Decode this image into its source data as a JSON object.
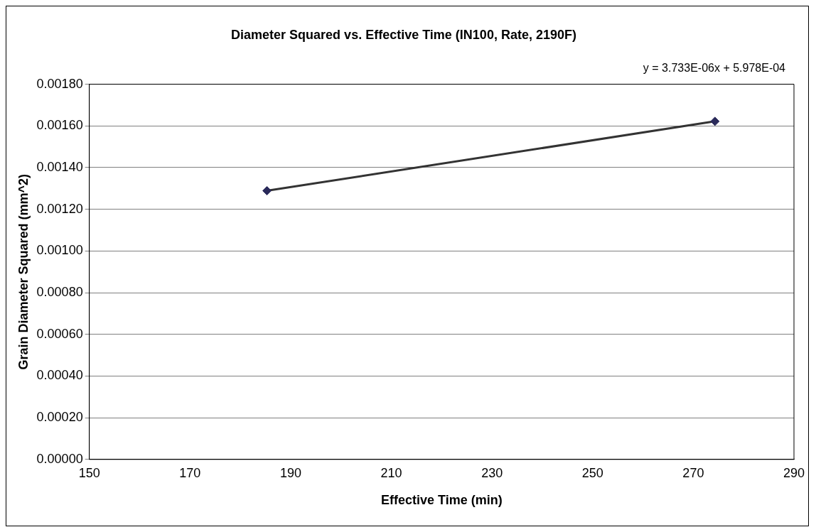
{
  "chart_data": {
    "type": "scatter",
    "title": "Diameter Squared vs. Effective Time (IN100, Rate, 2190F)",
    "xlabel": "Effective Time (min)",
    "ylabel": "Grain Diameter Squared (mm^2)",
    "x": [
      185.3,
      274.3
    ],
    "series": [
      {
        "color": "#2a2a5a",
        "values": [
          0.001289,
          0.001622
        ]
      },
      {
        "type": "line",
        "color": "#333333",
        "marker": "none",
        "x": [
          185.3,
          274.3
        ],
        "values": [
          0.001289,
          0.001622
        ]
      }
    ],
    "xlim": [
      150,
      290
    ],
    "xticks": [
      150,
      170,
      190,
      210,
      230,
      250,
      270,
      290
    ],
    "ylim": [
      0,
      0.0018
    ],
    "yticks": [
      {
        "value": 0,
        "label": "0.00000"
      },
      {
        "value": 0.0002,
        "label": "0.00020"
      },
      {
        "value": 0.0004,
        "label": "0.00040"
      },
      {
        "value": 0.0006,
        "label": "0.00060"
      },
      {
        "value": 0.0008,
        "label": "0.00080"
      },
      {
        "value": 0.001,
        "label": "0.00100"
      },
      {
        "value": 0.0012,
        "label": "0.00120"
      },
      {
        "value": 0.0014,
        "label": "0.00140"
      },
      {
        "value": 0.0016,
        "label": "0.00160"
      },
      {
        "value": 0.0018,
        "label": "0.00180"
      }
    ],
    "annotations": [
      "y = 3.733E-06x + 5.978E-04"
    ],
    "grid": "y",
    "legend": false,
    "marker": "diamond",
    "line_style": "solid"
  }
}
